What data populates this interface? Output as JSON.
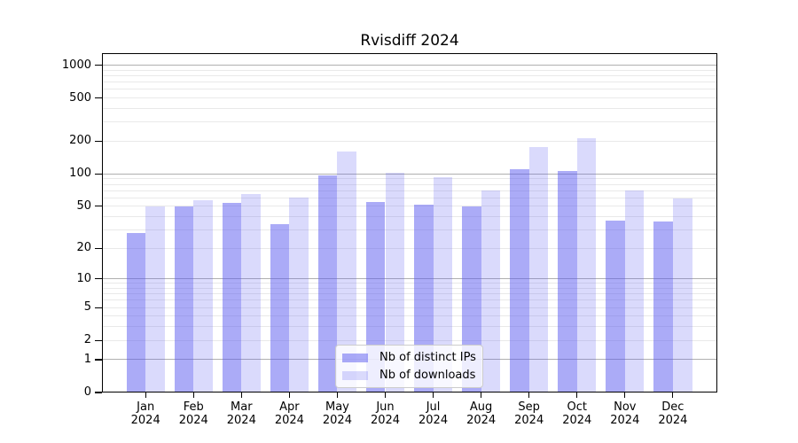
{
  "figure": {
    "title": "Rvisdiff 2024"
  },
  "chart_data": {
    "type": "bar",
    "title": "Rvisdiff 2024",
    "categories": [
      "Jan",
      "Feb",
      "Mar",
      "Apr",
      "May",
      "Jun",
      "Jul",
      "Aug",
      "Sep",
      "Oct",
      "Nov",
      "Dec"
    ],
    "year_label": "2024",
    "series": [
      {
        "name": "Nb of distinct IPs",
        "color": "rgba(88,88,240,0.5)",
        "values": [
          28,
          50,
          54,
          34,
          97,
          55,
          52,
          50,
          110,
          107,
          37,
          36
        ]
      },
      {
        "name": "Nb of downloads",
        "color": "rgba(88,88,240,0.22)",
        "values": [
          50,
          57,
          65,
          60,
          160,
          103,
          93,
          70,
          176,
          214,
          70,
          59
        ]
      }
    ],
    "yticks": [
      0,
      1,
      2,
      5,
      10,
      20,
      50,
      100,
      200,
      500,
      1000
    ],
    "scale": "log10(1+x)",
    "ylim": [
      0,
      1284
    ],
    "grid": true,
    "legend_position": "lower center",
    "grid_major_color": "#b0b0b0",
    "grid_minor_color": "#e9e9e9",
    "axis_color": "#000000"
  }
}
